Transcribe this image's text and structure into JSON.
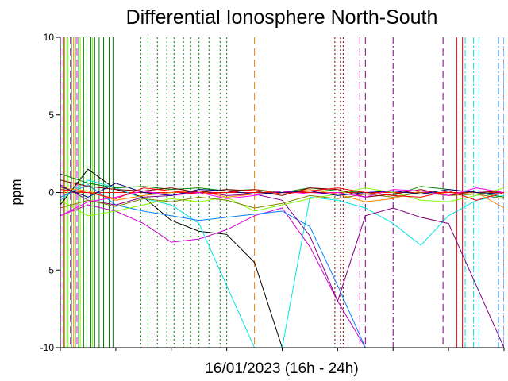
{
  "chart_data": {
    "type": "line",
    "title": "Differential Ionosphere North-South",
    "xlabel": "16/01/2023 (16h - 24h)",
    "ylabel": "ppm",
    "xlim": [
      16,
      24
    ],
    "ylim": [
      -10,
      10
    ],
    "y_ticks": [
      "10",
      "5",
      "0",
      "-5",
      "-10"
    ],
    "zero_line_color": "#ff0000",
    "grid": false,
    "legend": "none",
    "series": [
      {
        "color": "#000000",
        "dash": "solid",
        "x": [
          16.0,
          16.5,
          17.0,
          17.5,
          18.0,
          18.5,
          19.0,
          19.5,
          20.0,
          20.5,
          21.0,
          21.5
        ],
        "y": [
          -0.8,
          1.5,
          0.2,
          -0.3,
          -1.8,
          -2.5,
          -2.7,
          -4.5,
          -10,
          -10,
          -10,
          -10
        ]
      },
      {
        "color": "#00e5e5",
        "dash": "solid",
        "x": [
          16.0,
          16.5,
          17.0,
          17.5,
          18.0,
          18.5,
          19.0,
          19.5,
          20.0,
          20.5,
          21.0,
          21.5,
          22.0,
          22.5,
          23.0,
          23.5,
          24.0
        ],
        "y": [
          -0.5,
          0.8,
          0.3,
          -0.4,
          -0.8,
          -2.0,
          -6.0,
          -10,
          -10,
          -0.3,
          -0.5,
          -1.0,
          -2.0,
          -3.4,
          -1.5,
          -0.5,
          -0.2
        ]
      },
      {
        "color": "#cc00cc",
        "dash": "solid",
        "x": [
          16.0,
          16.5,
          17.0,
          17.5,
          18.0,
          18.5,
          19.0,
          19.5,
          20.0,
          20.5,
          21.0,
          21.5
        ],
        "y": [
          -1.5,
          -0.8,
          -1.2,
          -2.0,
          -3.2,
          -3.0,
          -2.4,
          -1.5,
          -1.0,
          -3.5,
          -7.0,
          -10
        ]
      },
      {
        "color": "#0080ff",
        "dash": "solid",
        "x": [
          16.0,
          16.5,
          17.0,
          17.5,
          18.0,
          18.5,
          19.0,
          19.5,
          20.0,
          20.5,
          21.0,
          21.5
        ],
        "y": [
          -0.3,
          0.5,
          -0.8,
          -1.2,
          -1.5,
          -1.8,
          -1.6,
          -1.4,
          -1.2,
          -2.2,
          -6.0,
          -10
        ]
      },
      {
        "color": "#800080",
        "dash": "solid",
        "x": [
          16.0,
          16.5,
          17.0,
          17.5,
          18.0,
          18.5,
          19.0,
          19.5,
          20.0,
          20.5,
          21.0,
          21.5,
          22.0,
          22.5,
          23.0,
          23.5,
          24.0
        ],
        "y": [
          0.5,
          -0.5,
          -0.8,
          -0.3,
          -0.2,
          0.1,
          -0.2,
          -0.1,
          -0.5,
          -2.8,
          -7.0,
          -1.5,
          -1.0,
          -1.6,
          -2.0,
          -6.0,
          -10
        ]
      },
      {
        "color": "#008000",
        "dash": "solid",
        "x": [
          16.0,
          16.5,
          17.0,
          17.5,
          18.0,
          18.5,
          19.0,
          19.5,
          20.0,
          20.5,
          21.0,
          21.5,
          22.0,
          22.5,
          23.0,
          23.5,
          24.0
        ],
        "y": [
          1.2,
          0.6,
          0.3,
          0.4,
          0.2,
          0.3,
          0.1,
          0.2,
          0.0,
          0.3,
          0.1,
          0.0,
          -0.2,
          0.4,
          0.2,
          0.0,
          -0.3
        ]
      },
      {
        "color": "#80ff00",
        "dash": "solid",
        "x": [
          16.0,
          16.5,
          17.0,
          17.5,
          18.0,
          18.5,
          19.0,
          19.5,
          20.0,
          20.5,
          21.0,
          21.5,
          22.0,
          22.5,
          23.0,
          23.5,
          24.0
        ],
        "y": [
          -0.5,
          -1.5,
          -1.2,
          -0.8,
          -0.4,
          -0.6,
          -0.3,
          -1.2,
          -0.8,
          -0.4,
          -0.1,
          0.3,
          0.0,
          -0.5,
          -0.6,
          -0.2,
          0.3
        ]
      },
      {
        "color": "#ff8000",
        "dash": "solid",
        "x": [
          16.0,
          16.5,
          17.0,
          17.5,
          18.0,
          18.5,
          19.0,
          19.5,
          20.0,
          20.5,
          21.0,
          21.5,
          22.0,
          22.5,
          23.0,
          23.5,
          24.0
        ],
        "y": [
          0.3,
          0.1,
          -0.5,
          -0.2,
          0.0,
          0.1,
          -0.3,
          -0.1,
          0.0,
          0.2,
          -0.1,
          -0.6,
          -0.4,
          0.1,
          -0.1,
          0.0,
          -1.0
        ]
      },
      {
        "color": "#808000",
        "dash": "solid",
        "x": [
          16.0,
          16.5,
          17.0,
          17.5,
          18.0,
          18.5,
          19.0,
          19.5,
          20.0,
          20.5,
          21.0,
          21.5,
          22.0,
          22.5,
          23.0,
          23.5,
          24.0
        ],
        "y": [
          -1.0,
          -0.5,
          -0.9,
          -0.4,
          -0.6,
          -0.3,
          -0.5,
          -1.0,
          -0.7,
          -0.2,
          -0.4,
          -0.1,
          -0.3,
          0.0,
          -0.2,
          -0.1,
          -0.4
        ]
      },
      {
        "color": "#800000",
        "dash": "solid",
        "x": [
          16.0,
          16.5,
          17.0,
          17.5,
          18.0,
          18.5,
          19.0,
          19.5,
          20.0,
          20.5,
          21.0,
          21.5,
          22.0,
          22.5,
          23.0,
          23.5,
          24.0
        ],
        "y": [
          0.8,
          0.4,
          0.2,
          0.1,
          0.3,
          0.0,
          0.2,
          0.1,
          -0.2,
          0.3,
          0.2,
          -0.3,
          -0.1,
          0.2,
          -0.2,
          0.1,
          0.0
        ]
      },
      {
        "color": "#ff00ff",
        "dash": "solid",
        "x": [
          16.0,
          16.5,
          17.0,
          17.5,
          18.0,
          18.5,
          19.0,
          19.5,
          20.0,
          20.5,
          21.0,
          21.5,
          22.0,
          22.5,
          23.0,
          23.5,
          24.0
        ],
        "y": [
          -1.5,
          -0.6,
          -0.3,
          0.1,
          -0.2,
          0.0,
          -0.4,
          -0.2,
          0.1,
          -0.1,
          0.0,
          -0.3,
          0.2,
          0.1,
          -0.2,
          0.3,
          0.0
        ]
      },
      {
        "color": "#000080",
        "dash": "solid",
        "x": [
          16.0,
          16.5,
          17.0,
          17.5,
          18.0,
          18.5,
          19.0,
          19.5,
          20.0,
          20.5,
          21.0,
          21.5,
          22.0,
          22.5,
          23.0,
          23.5,
          24.0
        ],
        "y": [
          0.4,
          -0.3,
          0.6,
          0.0,
          -0.2,
          0.2,
          0.1,
          -0.1,
          0.0,
          0.1,
          -0.2,
          0.0,
          0.1,
          -0.1,
          0.2,
          0.0,
          -0.1
        ]
      },
      {
        "color": "#ff0000",
        "dash": "solid",
        "x": [
          16.0,
          16.5,
          17.0,
          17.5,
          18.0,
          18.5,
          19.0,
          19.5,
          20.0,
          20.5,
          21.0,
          21.5,
          22.0,
          22.5,
          23.0,
          23.5,
          24.0
        ],
        "y": [
          0.2,
          0.0,
          -0.4,
          0.3,
          0.1,
          -0.1,
          0.0,
          0.2,
          -0.1,
          0.1,
          0.3,
          0.0,
          -0.2,
          -0.3,
          0.1,
          -0.5,
          0.0
        ]
      }
    ],
    "verticals": [
      {
        "color": "#008000",
        "dash": "solid",
        "x": [
          16.06,
          16.12,
          16.2,
          16.27,
          16.33,
          16.42,
          16.48,
          16.55,
          16.62,
          16.7,
          16.78,
          16.88,
          16.95
        ]
      },
      {
        "color": "#80ff00",
        "dash": "solid",
        "x": [
          16.14,
          16.36,
          16.58
        ]
      },
      {
        "color": "#ff8000",
        "dash": "solid",
        "x": [
          16.08,
          16.24
        ]
      },
      {
        "color": "#008000",
        "dash": "dotted",
        "x": [
          17.45,
          17.58,
          17.75,
          17.92,
          18.05,
          18.22,
          18.35,
          18.5,
          18.68,
          18.88,
          19.0
        ]
      },
      {
        "color": "#ff8000",
        "dash": "dashed",
        "x": [
          19.5
        ]
      },
      {
        "color": "#800000",
        "dash": "dotted",
        "x": [
          20.95,
          21.05,
          21.1
        ]
      },
      {
        "color": "#800080",
        "dash": "dash-dot",
        "x": [
          22.0
        ]
      },
      {
        "color": "#800080",
        "dash": "dashed",
        "x": [
          21.4,
          21.5,
          22.9,
          24.0
        ]
      },
      {
        "color": "#ff00ff",
        "dash": "dashed",
        "x": [
          16.05,
          16.18,
          16.3
        ]
      },
      {
        "color": "#00e5e5",
        "dash": "dash-dot",
        "x": [
          23.3,
          23.45,
          23.55
        ]
      },
      {
        "color": "#ff0000",
        "dash": "solid",
        "x": [
          23.15,
          23.25
        ]
      },
      {
        "color": "#0080ff",
        "dash": "dash-dot",
        "x": [
          23.9,
          24.0
        ]
      }
    ]
  }
}
